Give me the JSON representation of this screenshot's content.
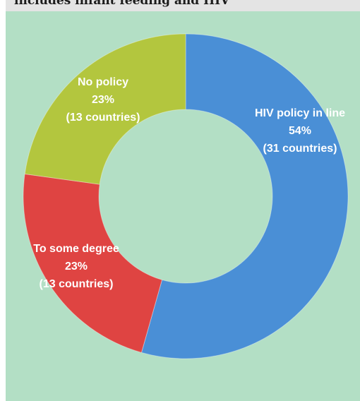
{
  "header": {
    "title": "includes infant feeding and HIV"
  },
  "colors": {
    "background": "#b3dfc5",
    "title_strip": "#e4e4e4",
    "hiv_policy": "#4a8fd6",
    "some_degree": "#df4442",
    "no_policy": "#b3c63e"
  },
  "chart_data": {
    "type": "pie",
    "variant": "donut",
    "title": "includes infant feeding and HIV",
    "start_angle_deg": 0,
    "direction": "clockwise",
    "slices": [
      {
        "label": "HIV policy in line",
        "percent_label": "54%",
        "count_label": "(31 countries)",
        "value": 31,
        "percent": 54,
        "color": "#4a8fd6"
      },
      {
        "label": "To some degree",
        "percent_label": "23%",
        "count_label": "(13 countries)",
        "value": 13,
        "percent": 23,
        "color": "#df4442"
      },
      {
        "label": "No policy",
        "percent_label": "23%",
        "count_label": "(13 countries)",
        "value": 13,
        "percent": 23,
        "color": "#b3c63e"
      }
    ]
  }
}
